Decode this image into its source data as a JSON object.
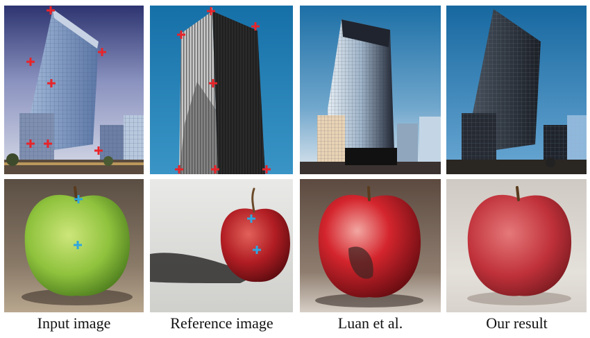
{
  "figure": {
    "columns": [
      {
        "caption": "Input image"
      },
      {
        "caption": "Reference image"
      },
      {
        "caption": "Luan et al."
      },
      {
        "caption": "Our result"
      }
    ],
    "rows": [
      "building",
      "apple"
    ],
    "marker_colors": {
      "building": "#e8242a",
      "apple": "#2fa6e0"
    }
  }
}
